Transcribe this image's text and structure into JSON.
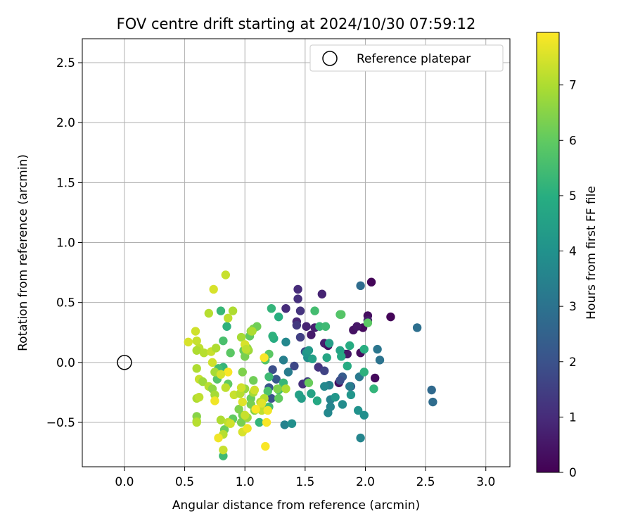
{
  "chart_data": {
    "type": "scatter",
    "title": "FOV centre drift starting at 2024/10/30 07:59:12",
    "xlabel": "Angular distance from reference (arcmin)",
    "ylabel": "Rotation from reference (arcmin)",
    "xlim": [
      -0.35,
      3.2
    ],
    "ylim": [
      -0.87,
      2.7
    ],
    "xticks": [
      0.0,
      0.5,
      1.0,
      1.5,
      2.0,
      2.5,
      3.0
    ],
    "xtick_labels": [
      "0.0",
      "0.5",
      "1.0",
      "1.5",
      "2.0",
      "2.5",
      "3.0"
    ],
    "yticks": [
      -0.5,
      0.0,
      0.5,
      1.0,
      1.5,
      2.0,
      2.5
    ],
    "ytick_labels": [
      "−0.5",
      "0.0",
      "0.5",
      "1.0",
      "1.5",
      "2.0",
      "2.5"
    ],
    "grid": true,
    "legend": {
      "placement": "top-right",
      "entries": [
        "Reference platepar"
      ]
    },
    "reference_point": {
      "x": 0.0,
      "y": 0.0
    },
    "colorbar": {
      "label": "Hours from first FF file",
      "range": [
        0,
        7.95
      ],
      "ticks": [
        0,
        1,
        2,
        3,
        4,
        5,
        6,
        7
      ],
      "colormap": "viridis"
    },
    "points": [
      {
        "x": 2.05,
        "y": 0.67,
        "h": 0.1
      },
      {
        "x": 2.21,
        "y": 0.38,
        "h": 0.1
      },
      {
        "x": 2.02,
        "y": 0.39,
        "h": 0.3
      },
      {
        "x": 1.98,
        "y": 0.29,
        "h": 0.2
      },
      {
        "x": 1.9,
        "y": 0.27,
        "h": 0.4
      },
      {
        "x": 1.93,
        "y": 0.3,
        "h": 0.5
      },
      {
        "x": 2.02,
        "y": 0.35,
        "h": 0.6
      },
      {
        "x": 2.08,
        "y": -0.13,
        "h": 0.2
      },
      {
        "x": 1.96,
        "y": 0.08,
        "h": 0.3
      },
      {
        "x": 1.83,
        "y": 0.07,
        "h": 0.4
      },
      {
        "x": 1.85,
        "y": 0.07,
        "h": 0.5
      },
      {
        "x": 1.78,
        "y": -0.17,
        "h": 0.3
      },
      {
        "x": 1.66,
        "y": 0.16,
        "h": 0.7
      },
      {
        "x": 1.69,
        "y": 0.14,
        "h": 0.4
      },
      {
        "x": 1.64,
        "y": 0.57,
        "h": 0.8
      },
      {
        "x": 1.44,
        "y": 0.61,
        "h": 1.0
      },
      {
        "x": 1.44,
        "y": 0.53,
        "h": 1.1
      },
      {
        "x": 1.46,
        "y": 0.43,
        "h": 1.2
      },
      {
        "x": 1.34,
        "y": 0.45,
        "h": 1.0
      },
      {
        "x": 1.43,
        "y": 0.34,
        "h": 0.9
      },
      {
        "x": 1.43,
        "y": 0.31,
        "h": 1.3
      },
      {
        "x": 1.51,
        "y": 0.3,
        "h": 0.8
      },
      {
        "x": 1.55,
        "y": 0.23,
        "h": 0.6
      },
      {
        "x": 1.58,
        "y": 0.29,
        "h": 0.7
      },
      {
        "x": 1.46,
        "y": 0.21,
        "h": 1.5
      },
      {
        "x": 1.48,
        "y": -0.18,
        "h": 1.1
      },
      {
        "x": 1.52,
        "y": -0.16,
        "h": 1.4
      },
      {
        "x": 1.61,
        "y": -0.04,
        "h": 1.2
      },
      {
        "x": 1.66,
        "y": -0.07,
        "h": 1.6
      },
      {
        "x": 1.5,
        "y": 0.09,
        "h": 1.8
      },
      {
        "x": 1.41,
        "y": -0.03,
        "h": 1.7
      },
      {
        "x": 1.23,
        "y": -0.06,
        "h": 1.9
      },
      {
        "x": 1.22,
        "y": -0.3,
        "h": 2.0
      },
      {
        "x": 1.2,
        "y": -0.21,
        "h": 2.1
      },
      {
        "x": 1.26,
        "y": -0.14,
        "h": 2.2
      },
      {
        "x": 1.81,
        "y": -0.12,
        "h": 2.3
      },
      {
        "x": 1.79,
        "y": -0.15,
        "h": 1.9
      },
      {
        "x": 1.88,
        "y": -0.2,
        "h": 2.4
      },
      {
        "x": 1.96,
        "y": 0.64,
        "h": 2.8
      },
      {
        "x": 2.43,
        "y": 0.29,
        "h": 2.9
      },
      {
        "x": 2.55,
        "y": -0.23,
        "h": 2.7
      },
      {
        "x": 2.56,
        "y": -0.33,
        "h": 2.8
      },
      {
        "x": 2.1,
        "y": 0.11,
        "h": 3.1
      },
      {
        "x": 2.12,
        "y": 0.02,
        "h": 3.0
      },
      {
        "x": 1.95,
        "y": -0.12,
        "h": 3.2
      },
      {
        "x": 1.87,
        "y": -0.2,
        "h": 3.3
      },
      {
        "x": 1.7,
        "y": -0.19,
        "h": 3.4
      },
      {
        "x": 1.71,
        "y": -0.31,
        "h": 3.5
      },
      {
        "x": 1.69,
        "y": -0.42,
        "h": 3.7
      },
      {
        "x": 1.71,
        "y": -0.37,
        "h": 3.6
      },
      {
        "x": 1.81,
        "y": -0.35,
        "h": 3.8
      },
      {
        "x": 1.96,
        "y": -0.63,
        "h": 3.6
      },
      {
        "x": 1.94,
        "y": -0.4,
        "h": 4.0
      },
      {
        "x": 1.99,
        "y": -0.44,
        "h": 3.9
      },
      {
        "x": 1.88,
        "y": -0.27,
        "h": 4.1
      },
      {
        "x": 1.75,
        "y": -0.29,
        "h": 4.2
      },
      {
        "x": 1.66,
        "y": -0.2,
        "h": 3.7
      },
      {
        "x": 1.33,
        "y": -0.52,
        "h": 3.5
      },
      {
        "x": 1.39,
        "y": -0.51,
        "h": 3.9
      },
      {
        "x": 1.32,
        "y": 0.02,
        "h": 3.4
      },
      {
        "x": 1.36,
        "y": -0.08,
        "h": 3.3
      },
      {
        "x": 1.34,
        "y": 0.17,
        "h": 3.7
      },
      {
        "x": 1.52,
        "y": 0.04,
        "h": 3.9
      },
      {
        "x": 1.51,
        "y": 0.08,
        "h": 4.1
      },
      {
        "x": 1.53,
        "y": 0.1,
        "h": 4.3
      },
      {
        "x": 1.56,
        "y": 0.03,
        "h": 4.5
      },
      {
        "x": 1.68,
        "y": 0.04,
        "h": 4.7
      },
      {
        "x": 1.7,
        "y": 0.16,
        "h": 4.4
      },
      {
        "x": 1.79,
        "y": 0.1,
        "h": 4.6
      },
      {
        "x": 1.8,
        "y": 0.05,
        "h": 4.8
      },
      {
        "x": 1.87,
        "y": 0.14,
        "h": 4.9
      },
      {
        "x": 1.99,
        "y": 0.11,
        "h": 5.0
      },
      {
        "x": 1.99,
        "y": -0.08,
        "h": 5.1
      },
      {
        "x": 2.07,
        "y": -0.22,
        "h": 5.2
      },
      {
        "x": 1.85,
        "y": -0.03,
        "h": 4.9
      },
      {
        "x": 1.62,
        "y": 0.3,
        "h": 5.3
      },
      {
        "x": 1.67,
        "y": 0.3,
        "h": 5.4
      },
      {
        "x": 1.58,
        "y": 0.43,
        "h": 5.5
      },
      {
        "x": 1.79,
        "y": 0.4,
        "h": 5.7
      },
      {
        "x": 1.8,
        "y": 0.4,
        "h": 5.8
      },
      {
        "x": 2.02,
        "y": 0.33,
        "h": 5.9
      },
      {
        "x": 1.45,
        "y": -0.27,
        "h": 4.5
      },
      {
        "x": 1.47,
        "y": -0.3,
        "h": 4.4
      },
      {
        "x": 1.55,
        "y": -0.26,
        "h": 4.6
      },
      {
        "x": 1.6,
        "y": -0.32,
        "h": 4.8
      },
      {
        "x": 1.28,
        "y": 0.38,
        "h": 5.0
      },
      {
        "x": 1.22,
        "y": 0.45,
        "h": 5.2
      },
      {
        "x": 1.24,
        "y": 0.2,
        "h": 4.9
      },
      {
        "x": 1.23,
        "y": 0.22,
        "h": 5.1
      },
      {
        "x": 1.32,
        "y": -0.17,
        "h": 5.3
      },
      {
        "x": 1.29,
        "y": -0.22,
        "h": 5.5
      },
      {
        "x": 1.28,
        "y": -0.23,
        "h": 5.6
      },
      {
        "x": 1.2,
        "y": -0.12,
        "h": 5.4
      },
      {
        "x": 1.19,
        "y": -0.24,
        "h": 5.7
      },
      {
        "x": 1.2,
        "y": 0.07,
        "h": 5.9
      },
      {
        "x": 1.12,
        "y": -0.5,
        "h": 5.2
      },
      {
        "x": 1.2,
        "y": -0.37,
        "h": 5.5
      },
      {
        "x": 1.17,
        "y": 0.02,
        "h": 5.8
      },
      {
        "x": 0.85,
        "y": 0.3,
        "h": 5.1
      },
      {
        "x": 0.8,
        "y": 0.43,
        "h": 5.3
      },
      {
        "x": 0.82,
        "y": 0.18,
        "h": 5.6
      },
      {
        "x": 0.88,
        "y": 0.08,
        "h": 5.9
      },
      {
        "x": 0.82,
        "y": -0.04,
        "h": 5.2
      },
      {
        "x": 0.78,
        "y": -0.05,
        "h": 5.5
      },
      {
        "x": 0.77,
        "y": -0.14,
        "h": 5.8
      },
      {
        "x": 0.86,
        "y": -0.18,
        "h": 6.0
      },
      {
        "x": 0.82,
        "y": -0.78,
        "h": 5.4
      },
      {
        "x": 0.83,
        "y": -0.56,
        "h": 6.1
      },
      {
        "x": 0.9,
        "y": -0.47,
        "h": 6.0
      },
      {
        "x": 0.98,
        "y": -0.44,
        "h": 6.2
      },
      {
        "x": 0.97,
        "y": -0.5,
        "h": 6.3
      },
      {
        "x": 0.95,
        "y": -0.39,
        "h": 6.4
      },
      {
        "x": 1.05,
        "y": -0.3,
        "h": 6.1
      },
      {
        "x": 1.05,
        "y": -0.35,
        "h": 6.3
      },
      {
        "x": 1.08,
        "y": -0.4,
        "h": 6.5
      },
      {
        "x": 1.07,
        "y": -0.15,
        "h": 6.2
      },
      {
        "x": 1.04,
        "y": 0.22,
        "h": 6.0
      },
      {
        "x": 1.07,
        "y": 0.28,
        "h": 6.4
      },
      {
        "x": 1.1,
        "y": 0.3,
        "h": 6.2
      },
      {
        "x": 1.05,
        "y": 0.26,
        "h": 6.6
      },
      {
        "x": 0.99,
        "y": 0.1,
        "h": 6.1
      },
      {
        "x": 1.0,
        "y": 0.05,
        "h": 6.3
      },
      {
        "x": 1.02,
        "y": 0.12,
        "h": 6.6
      },
      {
        "x": 1.03,
        "y": 0.1,
        "h": 6.8
      },
      {
        "x": 0.98,
        "y": -0.08,
        "h": 6.4
      },
      {
        "x": 1.0,
        "y": -0.22,
        "h": 6.7
      },
      {
        "x": 1.07,
        "y": -0.25,
        "h": 6.9
      },
      {
        "x": 1.02,
        "y": -0.46,
        "h": 6.8
      },
      {
        "x": 1.13,
        "y": -0.33,
        "h": 7.0
      },
      {
        "x": 1.16,
        "y": -0.3,
        "h": 7.1
      },
      {
        "x": 1.14,
        "y": -0.4,
        "h": 7.2
      },
      {
        "x": 1.53,
        "y": -0.17,
        "h": 6.1
      },
      {
        "x": 0.97,
        "y": 0.21,
        "h": 6.9
      },
      {
        "x": 0.9,
        "y": 0.43,
        "h": 7.0
      },
      {
        "x": 0.86,
        "y": 0.37,
        "h": 7.2
      },
      {
        "x": 0.7,
        "y": 0.41,
        "h": 7.1
      },
      {
        "x": 0.74,
        "y": 0.61,
        "h": 7.5
      },
      {
        "x": 0.84,
        "y": 0.73,
        "h": 7.3
      },
      {
        "x": 0.59,
        "y": 0.26,
        "h": 7.4
      },
      {
        "x": 0.53,
        "y": 0.17,
        "h": 7.5
      },
      {
        "x": 0.6,
        "y": 0.18,
        "h": 7.3
      },
      {
        "x": 0.62,
        "y": 0.12,
        "h": 7.2
      },
      {
        "x": 0.6,
        "y": 0.1,
        "h": 7.0
      },
      {
        "x": 0.66,
        "y": 0.08,
        "h": 7.1
      },
      {
        "x": 0.72,
        "y": 0.09,
        "h": 7.3
      },
      {
        "x": 0.76,
        "y": 0.12,
        "h": 7.0
      },
      {
        "x": 0.73,
        "y": 0.0,
        "h": 7.4
      },
      {
        "x": 0.75,
        "y": -0.08,
        "h": 6.9
      },
      {
        "x": 0.6,
        "y": -0.05,
        "h": 7.0
      },
      {
        "x": 0.62,
        "y": -0.14,
        "h": 7.3
      },
      {
        "x": 0.65,
        "y": -0.16,
        "h": 6.8
      },
      {
        "x": 0.7,
        "y": -0.2,
        "h": 7.1
      },
      {
        "x": 0.73,
        "y": -0.22,
        "h": 6.6
      },
      {
        "x": 0.75,
        "y": -0.27,
        "h": 6.9
      },
      {
        "x": 0.75,
        "y": -0.32,
        "h": 7.8
      },
      {
        "x": 0.6,
        "y": -0.3,
        "h": 7.0
      },
      {
        "x": 0.62,
        "y": -0.29,
        "h": 7.2
      },
      {
        "x": 0.6,
        "y": -0.45,
        "h": 6.5
      },
      {
        "x": 0.6,
        "y": -0.49,
        "h": 6.8
      },
      {
        "x": 0.6,
        "y": -0.5,
        "h": 7.1
      },
      {
        "x": 0.8,
        "y": -0.48,
        "h": 7.0
      },
      {
        "x": 0.82,
        "y": -0.6,
        "h": 7.1
      },
      {
        "x": 0.78,
        "y": -0.63,
        "h": 7.8
      },
      {
        "x": 0.82,
        "y": -0.73,
        "h": 7.3
      },
      {
        "x": 0.86,
        "y": -0.5,
        "h": 7.2
      },
      {
        "x": 0.88,
        "y": -0.51,
        "h": 7.4
      },
      {
        "x": 0.91,
        "y": -0.27,
        "h": 7.3
      },
      {
        "x": 0.84,
        "y": -0.21,
        "h": 7.2
      },
      {
        "x": 0.86,
        "y": -0.08,
        "h": 7.9
      },
      {
        "x": 0.8,
        "y": -0.1,
        "h": 7.5
      },
      {
        "x": 0.96,
        "y": -0.26,
        "h": 7.1
      },
      {
        "x": 0.97,
        "y": -0.21,
        "h": 7.4
      },
      {
        "x": 0.98,
        "y": -0.33,
        "h": 7.6
      },
      {
        "x": 0.98,
        "y": -0.58,
        "h": 7.5
      },
      {
        "x": 1.0,
        "y": -0.44,
        "h": 7.3
      },
      {
        "x": 1.02,
        "y": -0.55,
        "h": 7.8
      },
      {
        "x": 1.09,
        "y": -0.39,
        "h": 7.9
      },
      {
        "x": 1.08,
        "y": -0.23,
        "h": 7.4
      },
      {
        "x": 1.14,
        "y": -0.34,
        "h": 7.6
      },
      {
        "x": 1.18,
        "y": -0.5,
        "h": 7.9
      },
      {
        "x": 1.19,
        "y": -0.4,
        "h": 7.8
      },
      {
        "x": 1.17,
        "y": -0.7,
        "h": 7.9
      },
      {
        "x": 1.16,
        "y": 0.04,
        "h": 7.9
      },
      {
        "x": 1.0,
        "y": 0.15,
        "h": 7.5
      },
      {
        "x": 1.01,
        "y": 0.11,
        "h": 7.2
      },
      {
        "x": 1.06,
        "y": 0.26,
        "h": 7.0
      },
      {
        "x": 1.34,
        "y": -0.22,
        "h": 7.0
      },
      {
        "x": 1.27,
        "y": -0.22,
        "h": 6.4
      },
      {
        "x": 1.28,
        "y": -0.3,
        "h": 6.0
      }
    ]
  }
}
